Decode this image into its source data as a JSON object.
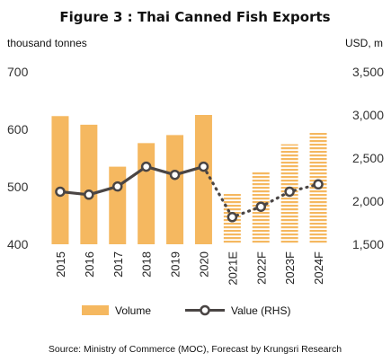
{
  "chart_data": {
    "type": "bar+line",
    "title": "Figure 3 : Thai Canned Fish Exports",
    "left_axis": {
      "unit": "thousand tonnes",
      "ticks": [
        "700",
        "600",
        "500",
        "400"
      ],
      "ylim": [
        400,
        700
      ]
    },
    "right_axis": {
      "unit": "USD, m",
      "ticks": [
        "3,500",
        "3,000",
        "2,500",
        "2,000",
        "1,500"
      ],
      "ylim": [
        1500,
        3500
      ]
    },
    "categories": [
      "2015",
      "2016",
      "2017",
      "2018",
      "2019",
      "2020",
      "2021E",
      "2022F",
      "2023F",
      "2024F"
    ],
    "forecast_start_index": 6,
    "series": [
      {
        "name": "Volume",
        "type": "bar",
        "axis": "left",
        "values": [
          623,
          608,
          535,
          576,
          590,
          625,
          488,
          525,
          574,
          596
        ],
        "color": "#F5B860"
      },
      {
        "name": "Value (RHS)",
        "type": "line",
        "axis": "right",
        "values": [
          2110,
          2075,
          2170,
          2400,
          2305,
          2400,
          1815,
          1935,
          2110,
          2195
        ],
        "color": "#4A4544"
      }
    ],
    "grid": false,
    "legend_position": "bottom"
  },
  "source": "Source: Ministry of Commerce (MOC), Forecast by Krungsri Research"
}
